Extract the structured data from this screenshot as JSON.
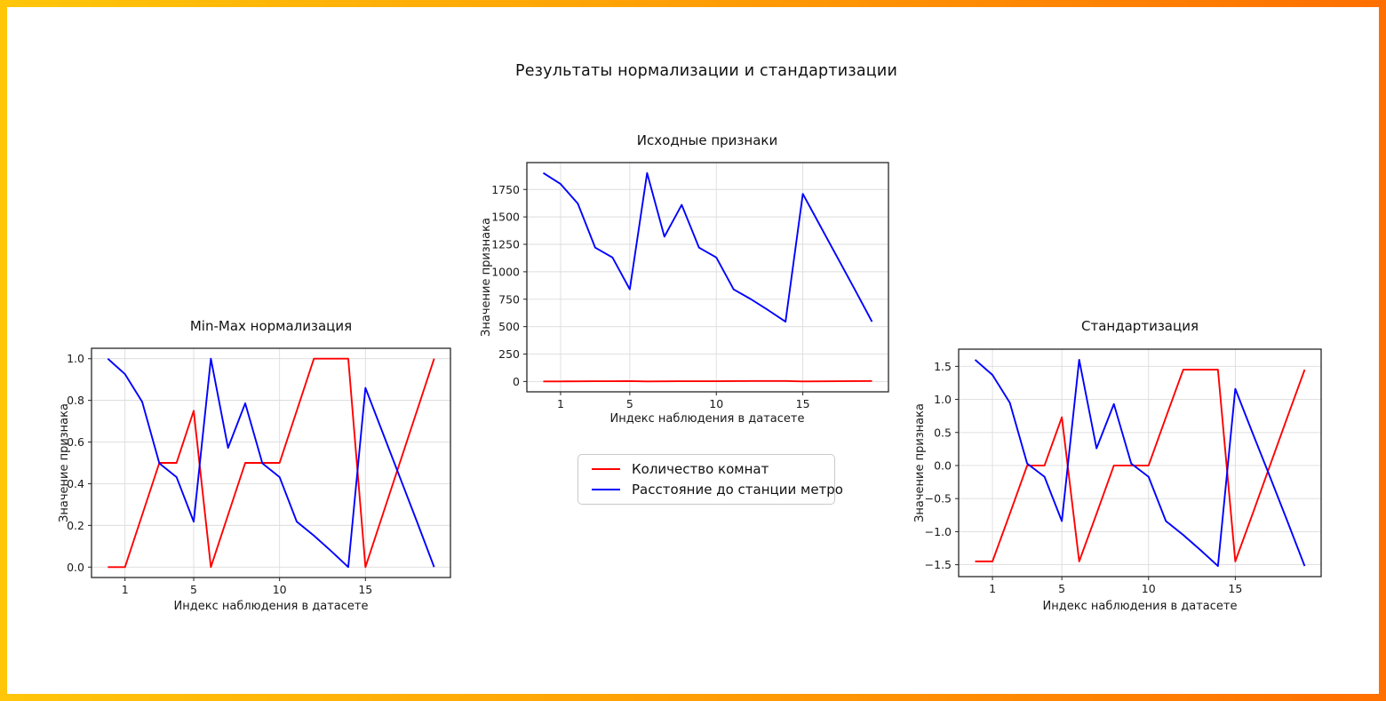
{
  "figure": {
    "title": "Результаты нормализации и стандартизации"
  },
  "legend": {
    "entries": [
      {
        "label": "Количество комнат",
        "color": "#ff0000"
      },
      {
        "label": "Расстояние до станции метро",
        "color": "#0000ff"
      }
    ]
  },
  "chart_data": [
    {
      "id": "minmax",
      "type": "line",
      "title": "Min-Max нормализация",
      "xlabel": "Индекс наблюдения в датасете",
      "ylabel": "Значение признака",
      "xlim": [
        -0.95,
        19.95
      ],
      "ylim": [
        -0.05,
        1.05
      ],
      "xticks": [
        1,
        5,
        10,
        15
      ],
      "xtick_labels": [
        "1",
        "5",
        "10",
        "15"
      ],
      "yticks": [
        0,
        0.2,
        0.4,
        0.6,
        0.8,
        1.0
      ],
      "ytick_labels": [
        "0.0",
        "0.2",
        "0.4",
        "0.6",
        "0.8",
        "1.0"
      ],
      "grid": true,
      "legend_position": "none",
      "x": [
        0,
        1,
        2,
        3,
        4,
        5,
        6,
        7,
        8,
        9,
        10,
        11,
        12,
        13,
        14,
        15,
        16,
        17,
        18,
        19
      ],
      "series": [
        {
          "name": "Количество комнат",
          "color": "#ff0000",
          "values": [
            0,
            0,
            0.25,
            0.5,
            0.5,
            0.75,
            0,
            0.25,
            0.5,
            0.5,
            0.5,
            0.75,
            1,
            1,
            1,
            0,
            0.25,
            0.5,
            0.75,
            1
          ]
        },
        {
          "name": "Расстояние до станции метро",
          "color": "#0000ff",
          "values": [
            1,
            0.926,
            0.793,
            0.498,
            0.432,
            0.218,
            1,
            0.572,
            0.786,
            0.498,
            0.432,
            0.218,
            0.151,
            0.077,
            0,
            0.86,
            0.646,
            0.432,
            0.218,
            0
          ]
        }
      ]
    },
    {
      "id": "original",
      "type": "line",
      "title": "Исходные признаки",
      "xlabel": "Индекс наблюдения в датасете",
      "ylabel": "Значение признака",
      "xlim": [
        -0.95,
        19.95
      ],
      "ylim": [
        -94,
        1995
      ],
      "xticks": [
        1,
        5,
        10,
        15
      ],
      "xtick_labels": [
        "1",
        "5",
        "10",
        "15"
      ],
      "yticks": [
        0,
        250,
        500,
        750,
        1000,
        1250,
        1500,
        1750
      ],
      "ytick_labels": [
        "0",
        "250",
        "500",
        "750",
        "1000",
        "1250",
        "1500",
        "1750"
      ],
      "grid": true,
      "legend_position": "below-figure",
      "x": [
        0,
        1,
        2,
        3,
        4,
        5,
        6,
        7,
        8,
        9,
        10,
        11,
        12,
        13,
        14,
        15,
        16,
        17,
        18,
        19
      ],
      "series": [
        {
          "name": "Количество комнат",
          "color": "#ff0000",
          "values": [
            1,
            1,
            2,
            3,
            3,
            4,
            1,
            2,
            3,
            3,
            3,
            4,
            5,
            5,
            5,
            1,
            2,
            3,
            4,
            5
          ]
        },
        {
          "name": "Расстояние до станции метро",
          "color": "#0000ff",
          "values": [
            1900,
            1800,
            1620,
            1220,
            1130,
            840,
            1900,
            1320,
            1610,
            1220,
            1130,
            840,
            750,
            650,
            545,
            1710,
            1420,
            1130,
            840,
            545
          ]
        }
      ]
    },
    {
      "id": "standard",
      "type": "line",
      "title": "Стандартизация",
      "xlabel": "Индекс наблюдения в датасете",
      "ylabel": "Значение признака",
      "xlim": [
        -0.95,
        19.95
      ],
      "ylim": [
        -1.68,
        1.76
      ],
      "xticks": [
        1,
        5,
        10,
        15
      ],
      "xtick_labels": [
        "1",
        "5",
        "10",
        "15"
      ],
      "yticks": [
        -1.5,
        -1.0,
        -0.5,
        0,
        0.5,
        1.0,
        1.5
      ],
      "ytick_labels": [
        "−1.5",
        "−1.0",
        "−0.5",
        "0.0",
        "0.5",
        "1.0",
        "1.5"
      ],
      "grid": true,
      "legend_position": "none",
      "x": [
        0,
        1,
        2,
        3,
        4,
        5,
        6,
        7,
        8,
        9,
        10,
        11,
        12,
        13,
        14,
        15,
        16,
        17,
        18,
        19
      ],
      "series": [
        {
          "name": "Количество комнат",
          "color": "#ff0000",
          "values": [
            -1.45,
            -1.45,
            -0.73,
            0,
            0,
            0.73,
            -1.45,
            -0.73,
            0,
            0,
            0,
            0.73,
            1.45,
            1.45,
            1.45,
            -1.45,
            -0.73,
            0,
            0.73,
            1.45
          ]
        },
        {
          "name": "Расстояние до станции метро",
          "color": "#0000ff",
          "values": [
            1.6,
            1.37,
            0.95,
            0.03,
            -0.17,
            -0.84,
            1.6,
            0.26,
            0.93,
            0.03,
            -0.17,
            -0.84,
            -1.05,
            -1.28,
            -1.52,
            1.16,
            0.49,
            -0.17,
            -0.84,
            -1.52
          ]
        }
      ]
    }
  ]
}
